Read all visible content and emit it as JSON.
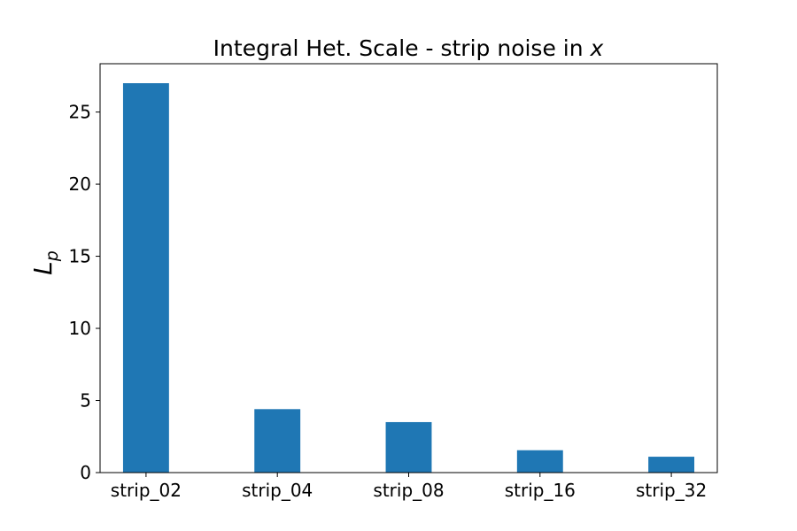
{
  "chart_data": {
    "type": "bar",
    "title_prefix": "Integral Het. Scale - strip noise in ",
    "title_var": "x",
    "ylabel_main": "L",
    "ylabel_sub": "p",
    "xlabel": "",
    "categories": [
      "strip_02",
      "strip_04",
      "strip_08",
      "strip_16",
      "strip_32"
    ],
    "values": [
      27.0,
      4.4,
      3.5,
      1.55,
      1.1
    ],
    "ylim": [
      0,
      28.35
    ],
    "yticks": [
      0,
      5,
      10,
      15,
      20,
      25
    ],
    "grid": false,
    "bar_color": "#1f77b4"
  }
}
